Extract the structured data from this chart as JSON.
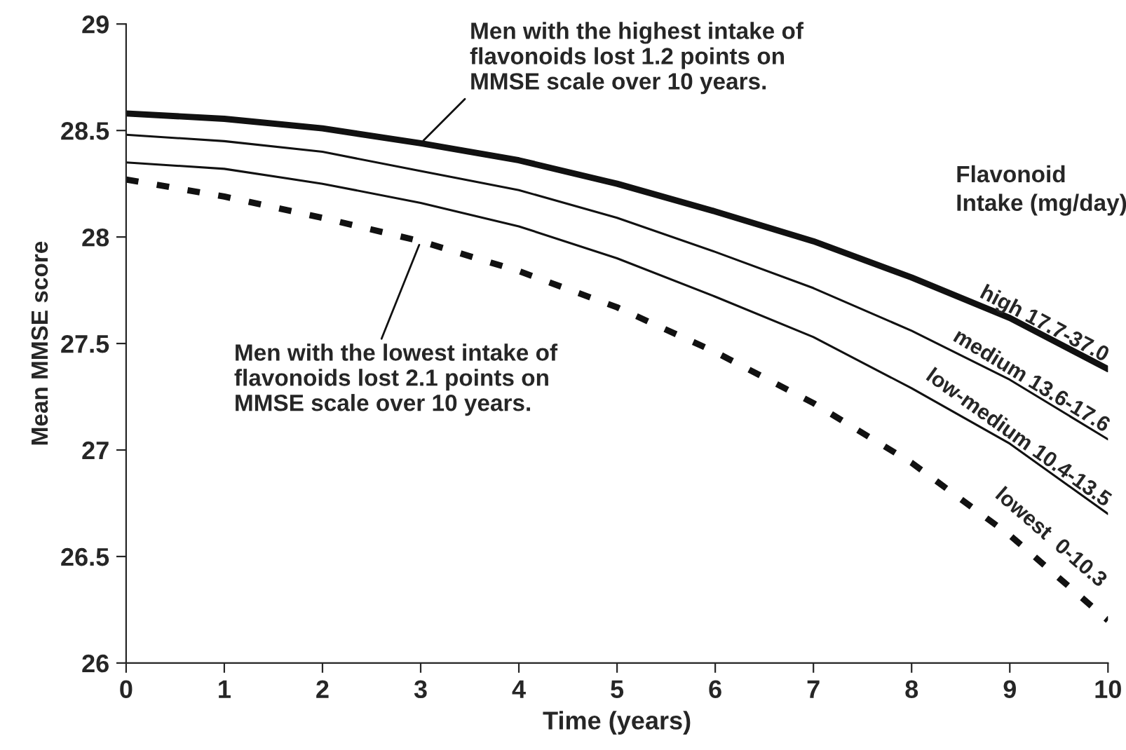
{
  "chart_data": {
    "type": "line",
    "xlabel": "Time (years)",
    "ylabel": "Mean MMSE score",
    "legend_title": "Flavonoid\nIntake (mg/day)",
    "x": [
      0,
      1,
      2,
      3,
      4,
      5,
      6,
      7,
      8,
      9,
      10
    ],
    "series": [
      {
        "name": "high 17.7-37.0",
        "color": "#111111",
        "line_style": "solid",
        "values": [
          28.58,
          28.555,
          28.51,
          28.44,
          28.36,
          28.25,
          28.12,
          27.98,
          27.81,
          27.62,
          27.38
        ]
      },
      {
        "name": "medium 13.6-17.6",
        "color": "#111111",
        "line_style": "solid",
        "values": [
          28.48,
          28.45,
          28.4,
          28.31,
          28.22,
          28.09,
          27.93,
          27.76,
          27.56,
          27.33,
          27.05
        ]
      },
      {
        "name": "low-medium 10.4-13.5",
        "color": "#111111",
        "line_style": "solid",
        "values": [
          28.35,
          28.32,
          28.25,
          28.16,
          28.05,
          27.9,
          27.72,
          27.53,
          27.29,
          27.03,
          26.7
        ]
      },
      {
        "name": "lowest  0-10.3",
        "color": "#111111",
        "line_style": "dashed",
        "values": [
          28.27,
          28.19,
          28.09,
          27.98,
          27.84,
          27.67,
          27.46,
          27.22,
          26.94,
          26.6,
          26.2
        ]
      }
    ],
    "xlim": [
      0,
      10
    ],
    "xticks": [
      0,
      1,
      2,
      3,
      4,
      5,
      6,
      7,
      8,
      9,
      10
    ],
    "ylim": [
      26,
      29
    ],
    "yticks": [
      26,
      26.5,
      27,
      27.5,
      28,
      28.5,
      29
    ],
    "grid": false,
    "legend": false,
    "marker": "none",
    "annotations": [
      {
        "text": "Men with the highest intake of\nflavonoids lost 1.2 points on\nMMSE scale over 10 years.",
        "x": 3,
        "y": 28.44
      },
      {
        "text": "Men with the lowest intake of\nflavonoids lost 2.1 points on\nMMSE scale over 10 years.",
        "x": 3,
        "y": 27.98
      }
    ]
  }
}
